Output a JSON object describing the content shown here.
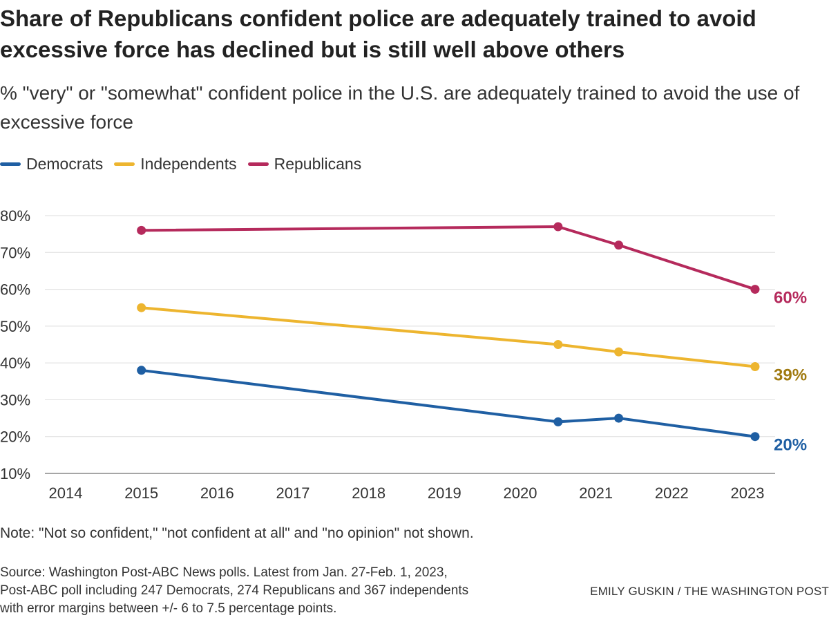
{
  "title": "Share of Republicans confident police are adequately trained to avoid excessive force has declined but is still well above others",
  "subtitle": "% \"very\" or \"somewhat\" confident police in the U.S. are adequately trained to avoid the use of excessive force",
  "note": "Note: \"Not so confident,\" \"not confident at all\" and \"no opinion\" not shown.",
  "source": {
    "line1": "Source: Washington Post-ABC News polls. Latest from Jan. 27-Feb. 1, 2023,",
    "line2": "Post-ABC poll including 247 Democrats, 274 Republicans and 367 independents",
    "line3": "with error margins between +/- 6 to 7.5 percentage points."
  },
  "credit": "EMILY GUSKIN / THE WASHINGTON POST",
  "chart_data": {
    "type": "line",
    "title": "Share of Republicans confident police are adequately trained to avoid excessive force has declined but is still well above others",
    "subtitle": "% \"very\" or \"somewhat\" confident police in the U.S. are adequately trained to avoid the use of excessive force",
    "xlabel": "",
    "ylabel": "",
    "xlim": [
      2014,
      2023
    ],
    "ylim": [
      10,
      80
    ],
    "x_ticks": [
      "2014",
      "2015",
      "2016",
      "2017",
      "2018",
      "2019",
      "2020",
      "2021",
      "2022",
      "2023"
    ],
    "y_ticks": [
      "10%",
      "20%",
      "30%",
      "40%",
      "50%",
      "60%",
      "70%",
      "80%"
    ],
    "grid": true,
    "legend": "top-left",
    "series": [
      {
        "name": "Democrats",
        "color": "#1f5fa3",
        "label_color": "#1f5fa3",
        "end_label": "20%",
        "points": [
          {
            "x": 2015,
            "y": 38
          },
          {
            "x": 2020.5,
            "y": 24
          },
          {
            "x": 2021.3,
            "y": 25
          },
          {
            "x": 2023.1,
            "y": 20
          }
        ]
      },
      {
        "name": "Independents",
        "color": "#edb52f",
        "label_color": "#a07a10",
        "end_label": "39%",
        "points": [
          {
            "x": 2015,
            "y": 55
          },
          {
            "x": 2020.5,
            "y": 45
          },
          {
            "x": 2021.3,
            "y": 43
          },
          {
            "x": 2023.1,
            "y": 39
          }
        ]
      },
      {
        "name": "Republicans",
        "color": "#b52a5c",
        "label_color": "#b52a5c",
        "end_label": "60%",
        "points": [
          {
            "x": 2015,
            "y": 76
          },
          {
            "x": 2020.5,
            "y": 77
          },
          {
            "x": 2021.3,
            "y": 72
          },
          {
            "x": 2023.1,
            "y": 60
          }
        ]
      }
    ]
  }
}
